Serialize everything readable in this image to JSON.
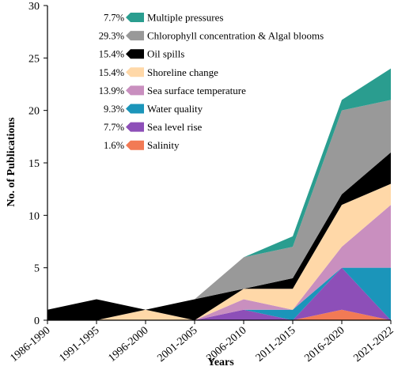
{
  "chart_data": {
    "type": "area",
    "stacked": true,
    "title": "",
    "xlabel": "Years",
    "ylabel": "No. of Publications",
    "ylim": [
      0,
      30
    ],
    "yticks": [
      0,
      5,
      10,
      15,
      20,
      25,
      30
    ],
    "grid": false,
    "legend_position": "top-left",
    "categories": [
      "1986-1990",
      "1991-1995",
      "1996-2000",
      "2001-2005",
      "2006-2010",
      "2011-2015",
      "2016-2020",
      "2021-2022"
    ],
    "series": [
      {
        "name": "Salinity",
        "percent": "1.6%",
        "color": "#f27a55",
        "values": [
          0,
          0,
          0,
          0,
          0,
          0,
          1,
          0
        ]
      },
      {
        "name": "Sea level rise",
        "percent": "7.7%",
        "color": "#8d4fb8",
        "values": [
          0,
          0,
          0,
          0,
          1,
          0,
          4,
          0
        ]
      },
      {
        "name": "Water quality",
        "percent": "9.3%",
        "color": "#1b95ba",
        "values": [
          0,
          0,
          0,
          0,
          0,
          1,
          0,
          5
        ]
      },
      {
        "name": "Sea surface temperature",
        "percent": "13.9%",
        "color": "#c98fbf",
        "values": [
          0,
          0,
          0,
          0,
          1,
          0,
          2,
          6
        ]
      },
      {
        "name": "Shoreline change",
        "percent": "15.4%",
        "color": "#ffd8a8",
        "values": [
          0,
          0,
          1,
          0,
          1,
          2,
          4,
          2
        ]
      },
      {
        "name": "Oil spills",
        "percent": "15.4%",
        "color": "#000000",
        "values": [
          1,
          2,
          0,
          2,
          0,
          1,
          1,
          3
        ]
      },
      {
        "name": "Chlorophyll concentration & Algal blooms",
        "percent": "29.3%",
        "color": "#999999",
        "values": [
          0,
          0,
          0,
          0,
          3,
          3,
          8,
          5
        ]
      },
      {
        "name": "Multiple pressures",
        "percent": "7.7%",
        "color": "#2a9d8f",
        "values": [
          0,
          0,
          0,
          0,
          0,
          1,
          1,
          3
        ]
      }
    ]
  }
}
